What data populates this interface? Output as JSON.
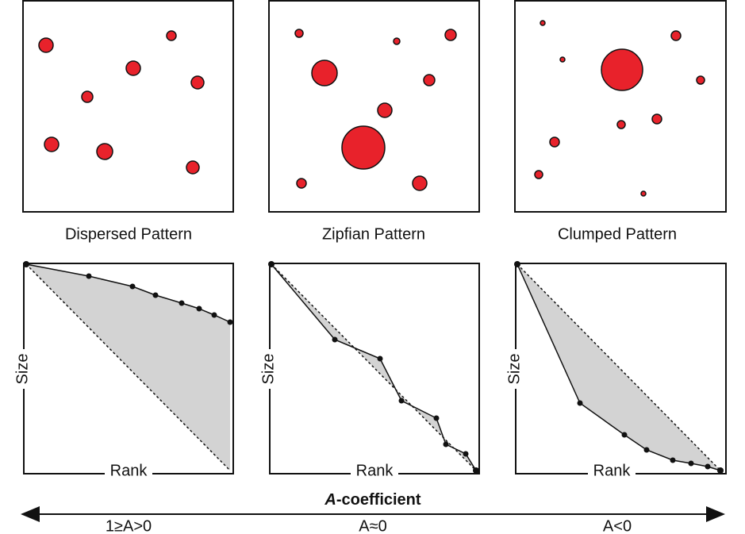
{
  "panels": [
    {
      "title": "Dispersed Pattern",
      "y_label": "Size",
      "x_label": "Rank"
    },
    {
      "title": "Zipfian Pattern",
      "y_label": "Size",
      "x_label": "Rank"
    },
    {
      "title": "Clumped Pattern",
      "y_label": "Size",
      "x_label": "Rank"
    }
  ],
  "axis": {
    "title_prefix": "A",
    "title_suffix": "-coefficient",
    "labels": [
      "1≥A>0",
      "A≈0",
      "A<0"
    ]
  }
}
